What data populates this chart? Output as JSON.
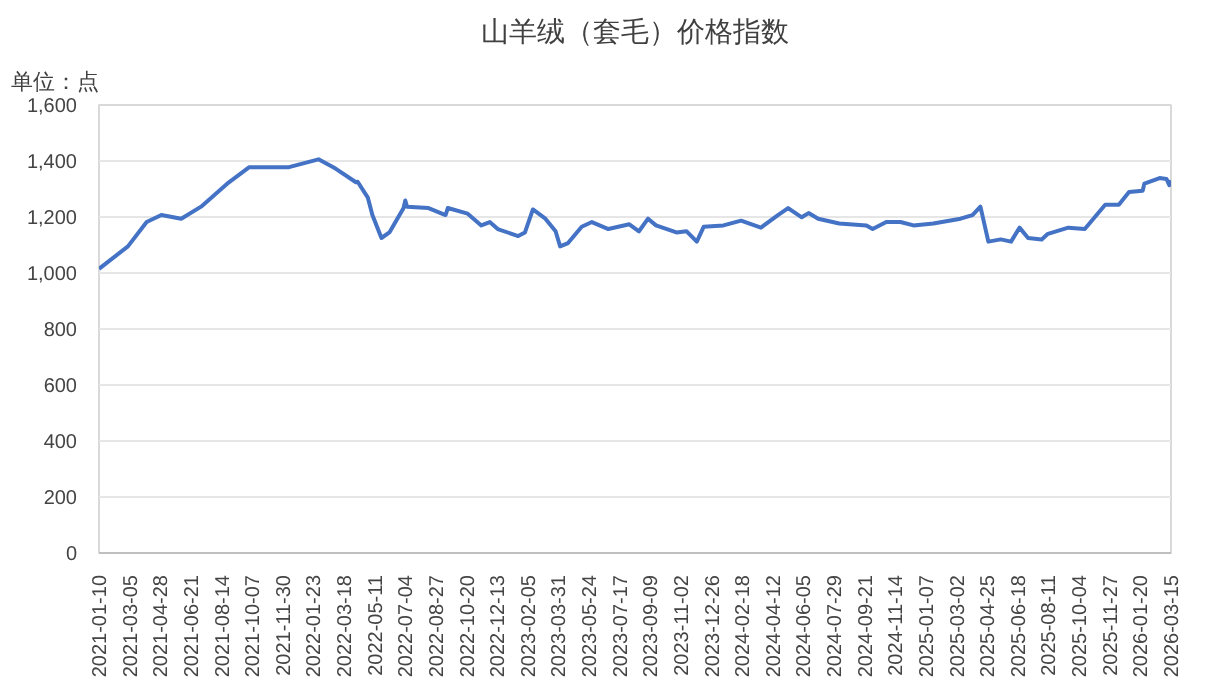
{
  "chart_data": {
    "type": "line",
    "title": "山羊绒（套毛）价格指数",
    "ylabel": "单位：点",
    "x": [
      "2021-01-10",
      "2021-03-02",
      "2021-04-04",
      "2021-04-30",
      "2021-06-04",
      "2021-07-09",
      "2021-08-24",
      "2021-10-02",
      "2021-12-11",
      "2022-02-01",
      "2022-03-03",
      "2022-04-08",
      "2022-04-11",
      "2022-04-29",
      "2022-05-07",
      "2022-05-23",
      "2022-06-06",
      "2022-07-01",
      "2022-07-04",
      "2022-07-07",
      "2022-08-14",
      "2022-09-13",
      "2022-09-17",
      "2022-10-22",
      "2022-11-15",
      "2022-11-30",
      "2022-12-14",
      "2023-01-19",
      "2023-01-31",
      "2023-02-14",
      "2023-03-08",
      "2023-03-26",
      "2023-04-03",
      "2023-04-17",
      "2023-05-11",
      "2023-05-29",
      "2023-06-27",
      "2023-08-03",
      "2023-08-20",
      "2023-09-05",
      "2023-09-19",
      "2023-10-25",
      "2023-11-12",
      "2023-11-30",
      "2023-12-12",
      "2024-01-16",
      "2024-02-16",
      "2024-03-22",
      "2024-04-21",
      "2024-05-09",
      "2024-06-02",
      "2024-06-14",
      "2024-07-01",
      "2024-08-07",
      "2024-09-24",
      "2024-10-05",
      "2024-10-29",
      "2024-11-23",
      "2024-12-16",
      "2025-01-20",
      "2025-03-09",
      "2025-03-30",
      "2025-04-13",
      "2025-04-27",
      "2025-05-19",
      "2025-06-06",
      "2025-06-21",
      "2025-07-06",
      "2025-07-30",
      "2025-08-10",
      "2025-09-15",
      "2025-10-14",
      "2025-11-19",
      "2025-12-13",
      "2025-12-31",
      "2026-01-24",
      "2026-01-27",
      "2026-02-23",
      "2026-03-07",
      "2026-03-12",
      "2026-03-15"
    ],
    "series": [
      {
        "color": "#4472c4",
        "values": [
          1015,
          1095,
          1182,
          1207,
          1194,
          1237,
          1319,
          1378,
          1378,
          1406,
          1373,
          1324,
          1326,
          1269,
          1207,
          1125,
          1145,
          1232,
          1259,
          1237,
          1232,
          1207,
          1232,
          1212,
          1170,
          1182,
          1157,
          1132,
          1145,
          1227,
          1194,
          1149,
          1095,
          1107,
          1165,
          1182,
          1157,
          1174,
          1149,
          1194,
          1170,
          1145,
          1149,
          1112,
          1165,
          1170,
          1187,
          1162,
          1207,
          1232,
          1199,
          1214,
          1194,
          1177,
          1170,
          1157,
          1182,
          1182,
          1170,
          1177,
          1194,
          1207,
          1237,
          1112,
          1120,
          1112,
          1162,
          1125,
          1120,
          1140,
          1162,
          1157,
          1244,
          1244,
          1289,
          1294,
          1319,
          1339,
          1336,
          1314,
          1331
        ]
      }
    ],
    "xlim": [
      "2021-01-10",
      "2026-03-15"
    ],
    "xticks": [
      "2021-01-10",
      "2021-03-05",
      "2021-04-28",
      "2021-06-21",
      "2021-08-14",
      "2021-10-07",
      "2021-11-30",
      "2022-01-23",
      "2022-03-18",
      "2022-05-11",
      "2022-07-04",
      "2022-08-27",
      "2022-10-20",
      "2022-12-13",
      "2023-02-05",
      "2023-03-31",
      "2023-05-24",
      "2023-07-17",
      "2023-09-09",
      "2023-11-02",
      "2023-12-26",
      "2024-02-18",
      "2024-04-12",
      "2024-06-05",
      "2024-07-29",
      "2024-09-21",
      "2024-11-14",
      "2025-01-07",
      "2025-03-02",
      "2025-04-25",
      "2025-06-18",
      "2025-08-11",
      "2025-10-04",
      "2025-11-27",
      "2026-01-20",
      "2026-03-15"
    ],
    "ylim": [
      0,
      1600
    ],
    "yticks": [
      {
        "value": 0,
        "label": "0"
      },
      {
        "value": 200,
        "label": "200"
      },
      {
        "value": 400,
        "label": "400"
      },
      {
        "value": 600,
        "label": "600"
      },
      {
        "value": 800,
        "label": "800"
      },
      {
        "value": 1000,
        "label": "1,000"
      },
      {
        "value": 1200,
        "label": "1,200"
      },
      {
        "value": 1400,
        "label": "1,400"
      },
      {
        "value": 1600,
        "label": "1,600"
      }
    ],
    "grid": "y",
    "line_style": "solid"
  }
}
